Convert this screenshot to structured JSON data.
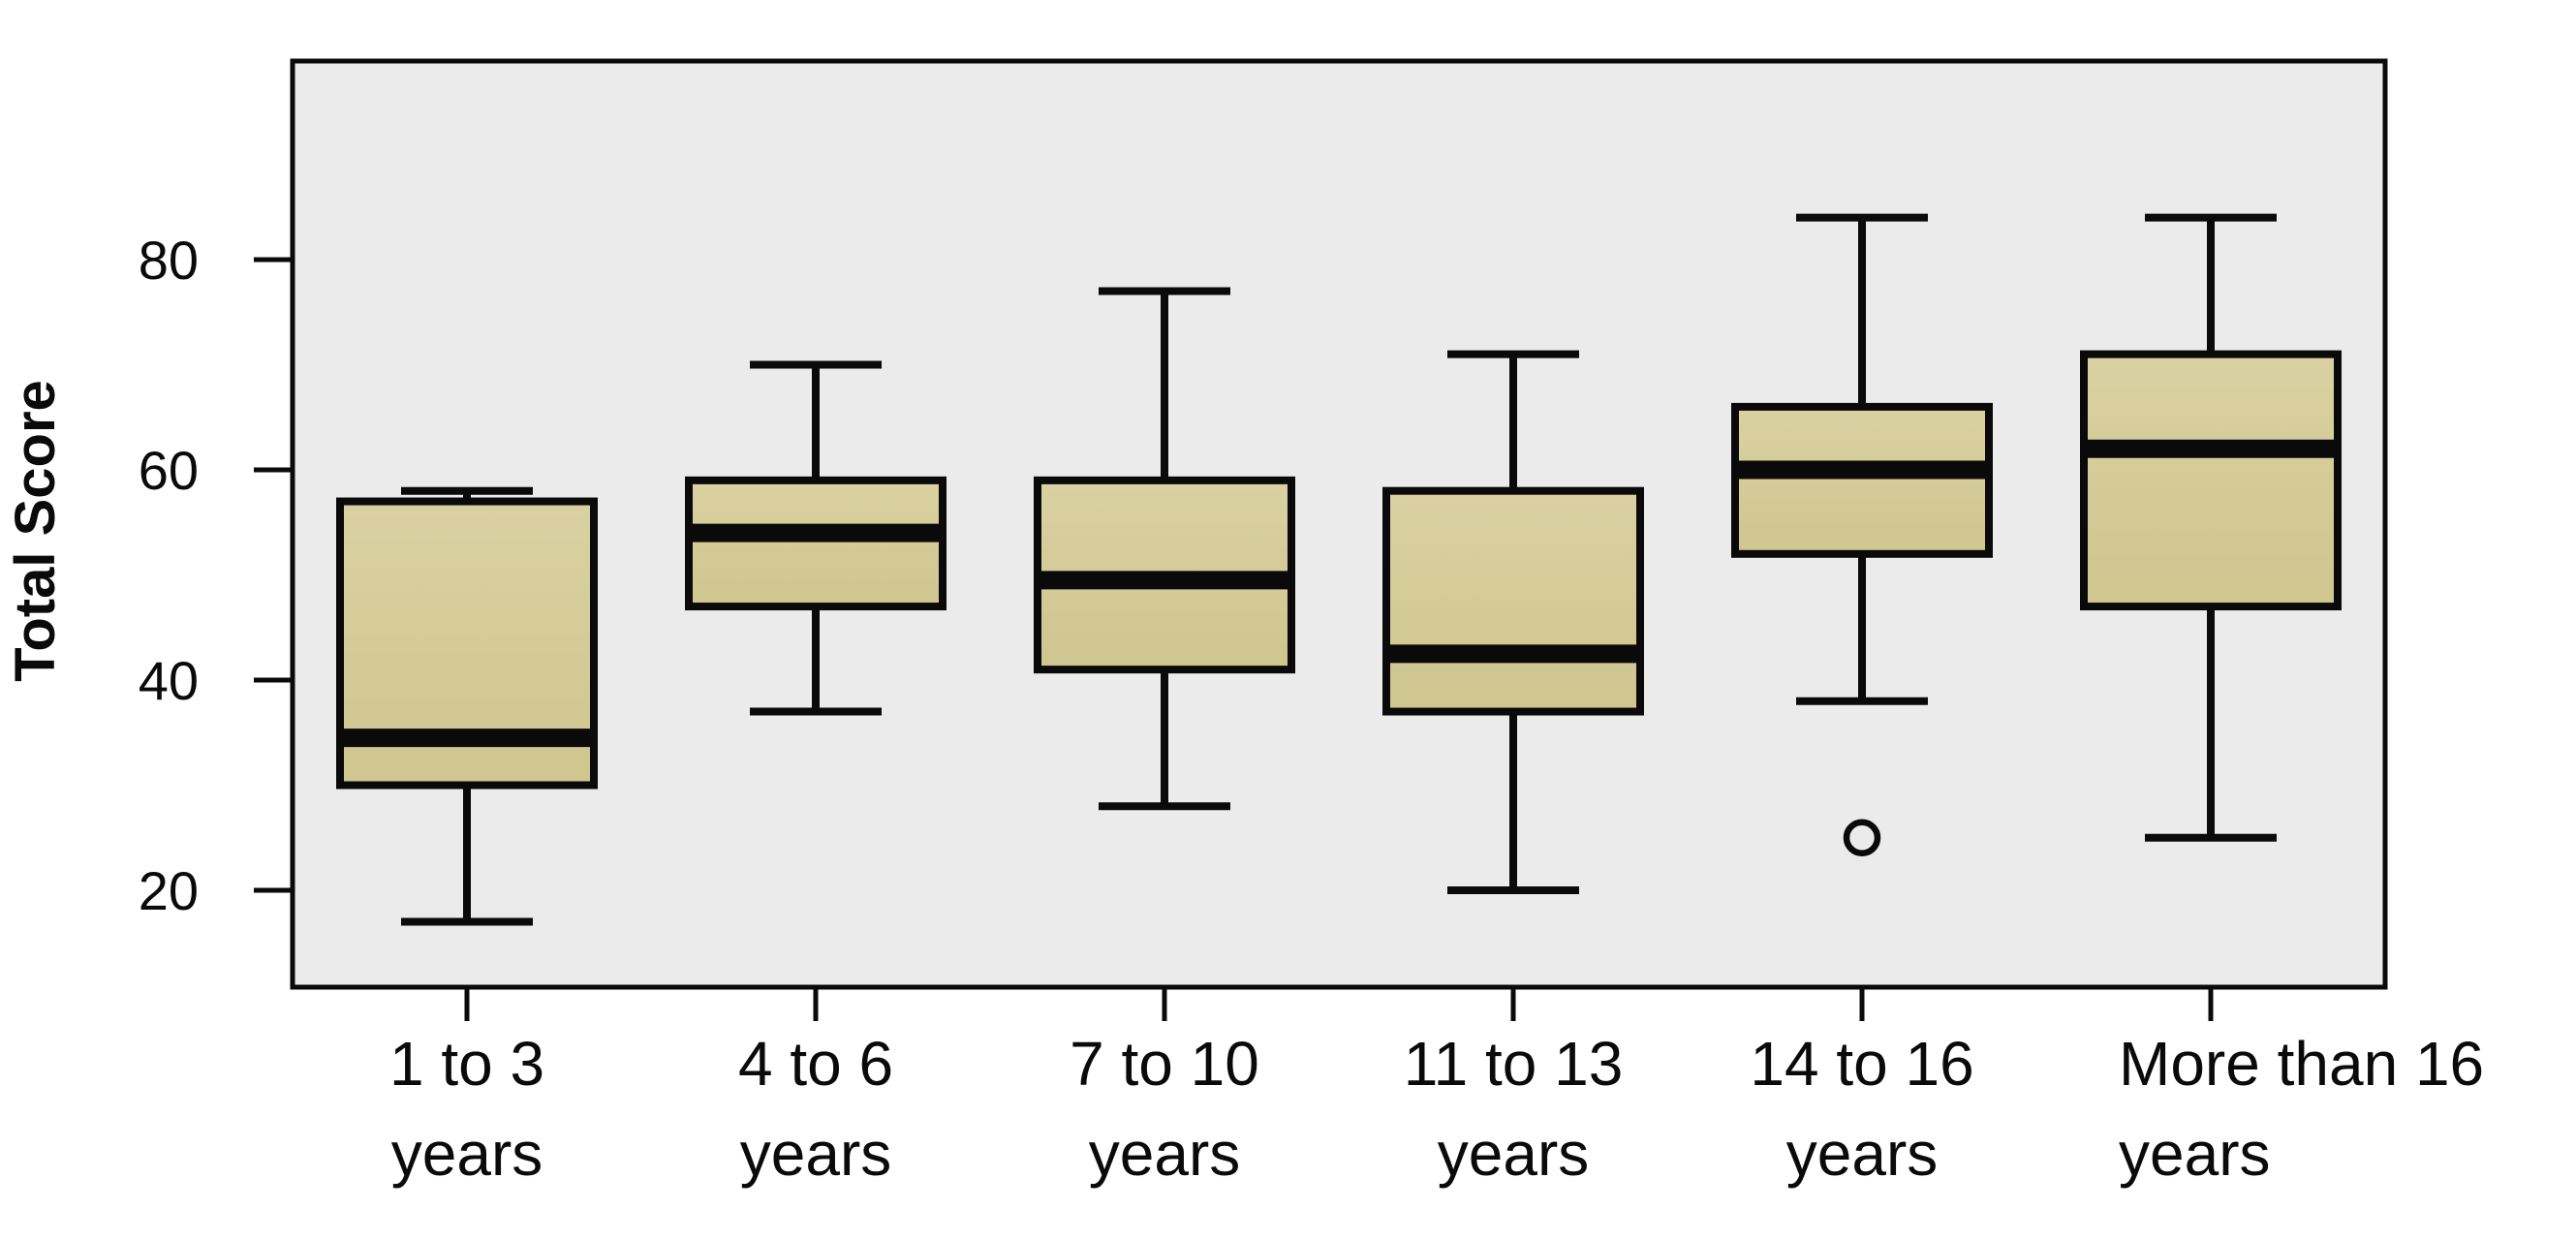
{
  "figure": {
    "background": "#ffffff",
    "line_color": "#0a0a0a"
  },
  "chart_data": {
    "type": "box",
    "title": "",
    "xlabel": "",
    "ylabel": "Total Score",
    "y_ticks": [
      20,
      40,
      60,
      80
    ],
    "ylim": [
      10.8,
      98.9
    ],
    "grid": false,
    "legend": "none",
    "plot_bg": "#ebebeb",
    "box_fill": "#d5cc96",
    "box_fill_light": "#dad1a2",
    "box_fill_dark": "#cfc58f",
    "categories": [
      {
        "label_line1": "1 to 3",
        "label_line2": "years",
        "align": "center"
      },
      {
        "label_line1": "4 to 6",
        "label_line2": "years",
        "align": "center"
      },
      {
        "label_line1": "7 to 10",
        "label_line2": "years",
        "align": "center"
      },
      {
        "label_line1": "11 to 13",
        "label_line2": "years",
        "align": "center"
      },
      {
        "label_line1": "14 to 16",
        "label_line2": "years",
        "align": "center"
      },
      {
        "label_line1": "More than 16",
        "label_line2": "years",
        "align": "left"
      }
    ],
    "series": [
      {
        "category": "1 to 3 years",
        "whisker_low": 17,
        "q1": 30,
        "median": 34.5,
        "q3": 57,
        "whisker_high": 58,
        "outliers": []
      },
      {
        "category": "4 to 6 years",
        "whisker_low": 37,
        "q1": 47,
        "median": 54,
        "q3": 59,
        "whisker_high": 70,
        "outliers": []
      },
      {
        "category": "7 to 10 years",
        "whisker_low": 28,
        "q1": 41,
        "median": 49.5,
        "q3": 59,
        "whisker_high": 77,
        "outliers": []
      },
      {
        "category": "11 to 13 years",
        "whisker_low": 20,
        "q1": 37,
        "median": 42.5,
        "q3": 58,
        "whisker_high": 71,
        "outliers": []
      },
      {
        "category": "14 to 16 years",
        "whisker_low": 38,
        "q1": 52,
        "median": 60,
        "q3": 66,
        "whisker_high": 84,
        "outliers": [
          25
        ]
      },
      {
        "category": "More than 16 years",
        "whisker_low": 25,
        "q1": 47,
        "median": 62,
        "q3": 71,
        "whisker_high": 84,
        "outliers": []
      }
    ]
  }
}
